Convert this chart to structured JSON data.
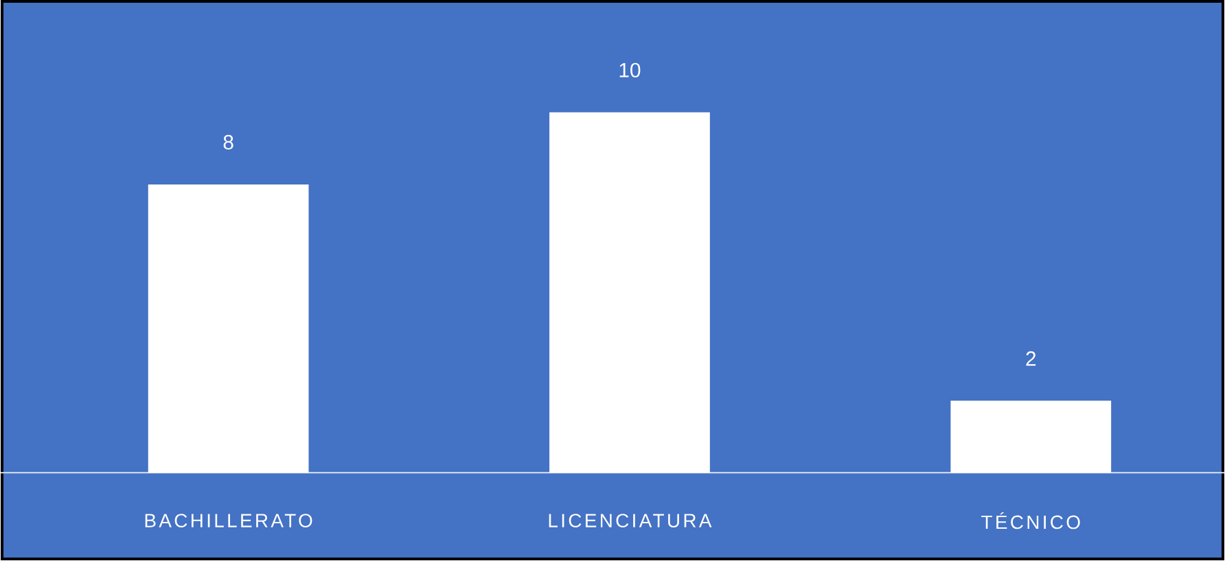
{
  "chart_data": {
    "type": "bar",
    "categories": [
      "BACHILLERATO",
      "LICENCIATURA",
      "TÉCNICO"
    ],
    "values": [
      8,
      10,
      2
    ],
    "color": "#ffffff",
    "data_labels": true
  }
}
